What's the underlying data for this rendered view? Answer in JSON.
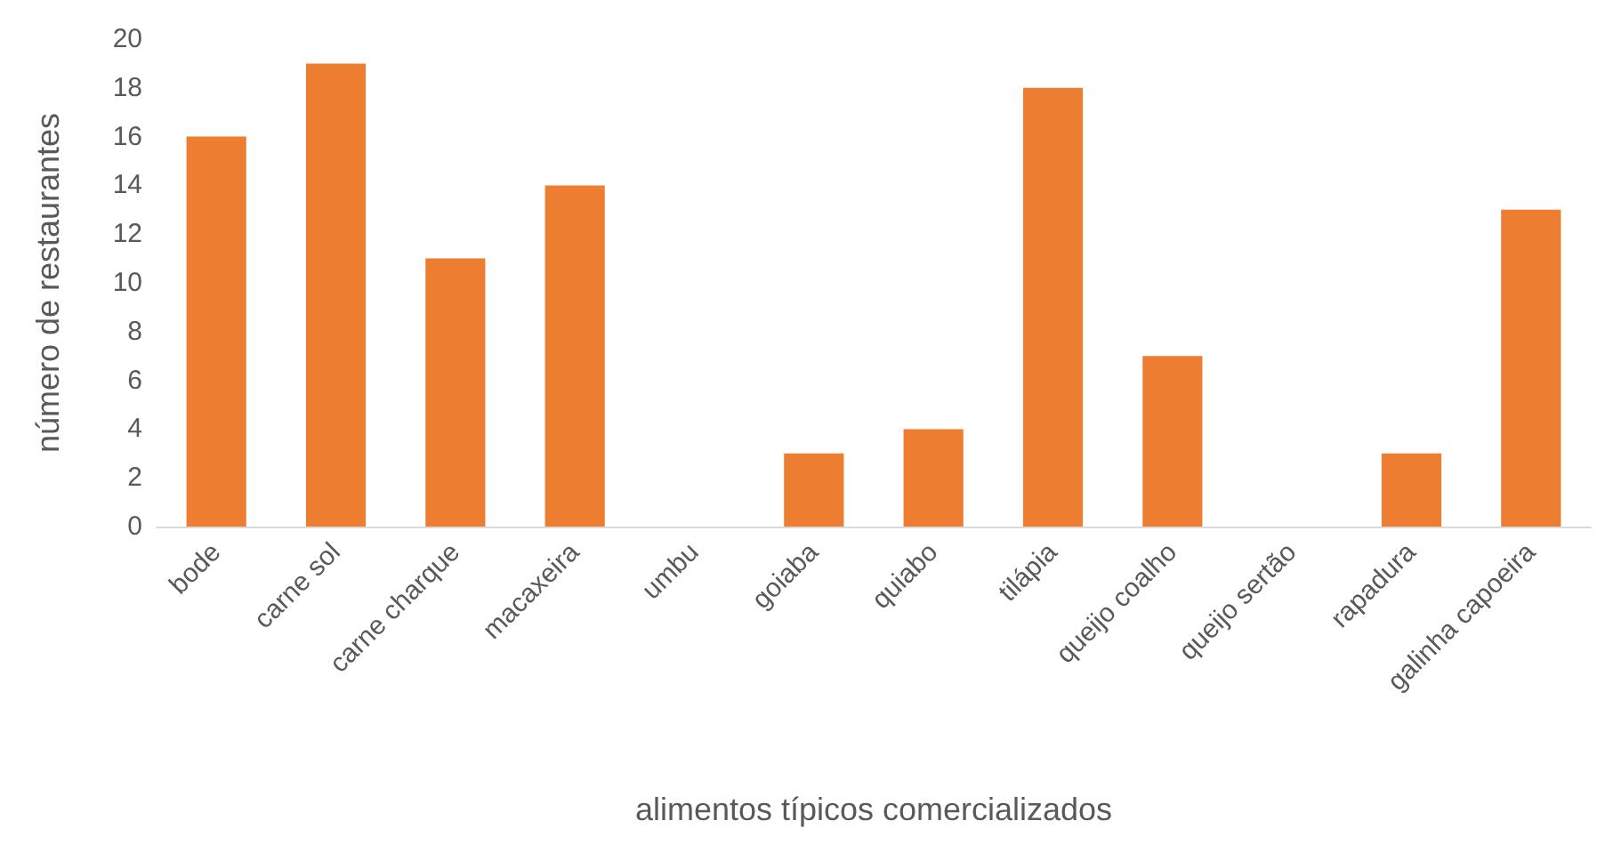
{
  "chart_data": {
    "type": "bar",
    "xlabel": "alimentos típicos comercializados",
    "ylabel": "número de restaurantes",
    "categories": [
      "bode",
      "carne sol",
      "carne charque",
      "macaxeira",
      "umbu",
      "goiaba",
      "quiabo",
      "tilápia",
      "queijo coalho",
      "queijo sertão",
      "rapadura",
      "galinha capoeira"
    ],
    "values": [
      16,
      19,
      11,
      14,
      0,
      3,
      4,
      18,
      7,
      0,
      3,
      13
    ],
    "color": "#ed7d31",
    "ylim": [
      0,
      20
    ],
    "yticks": [
      0,
      2,
      4,
      6,
      8,
      10,
      12,
      14,
      16,
      18,
      20
    ],
    "grid": false
  }
}
